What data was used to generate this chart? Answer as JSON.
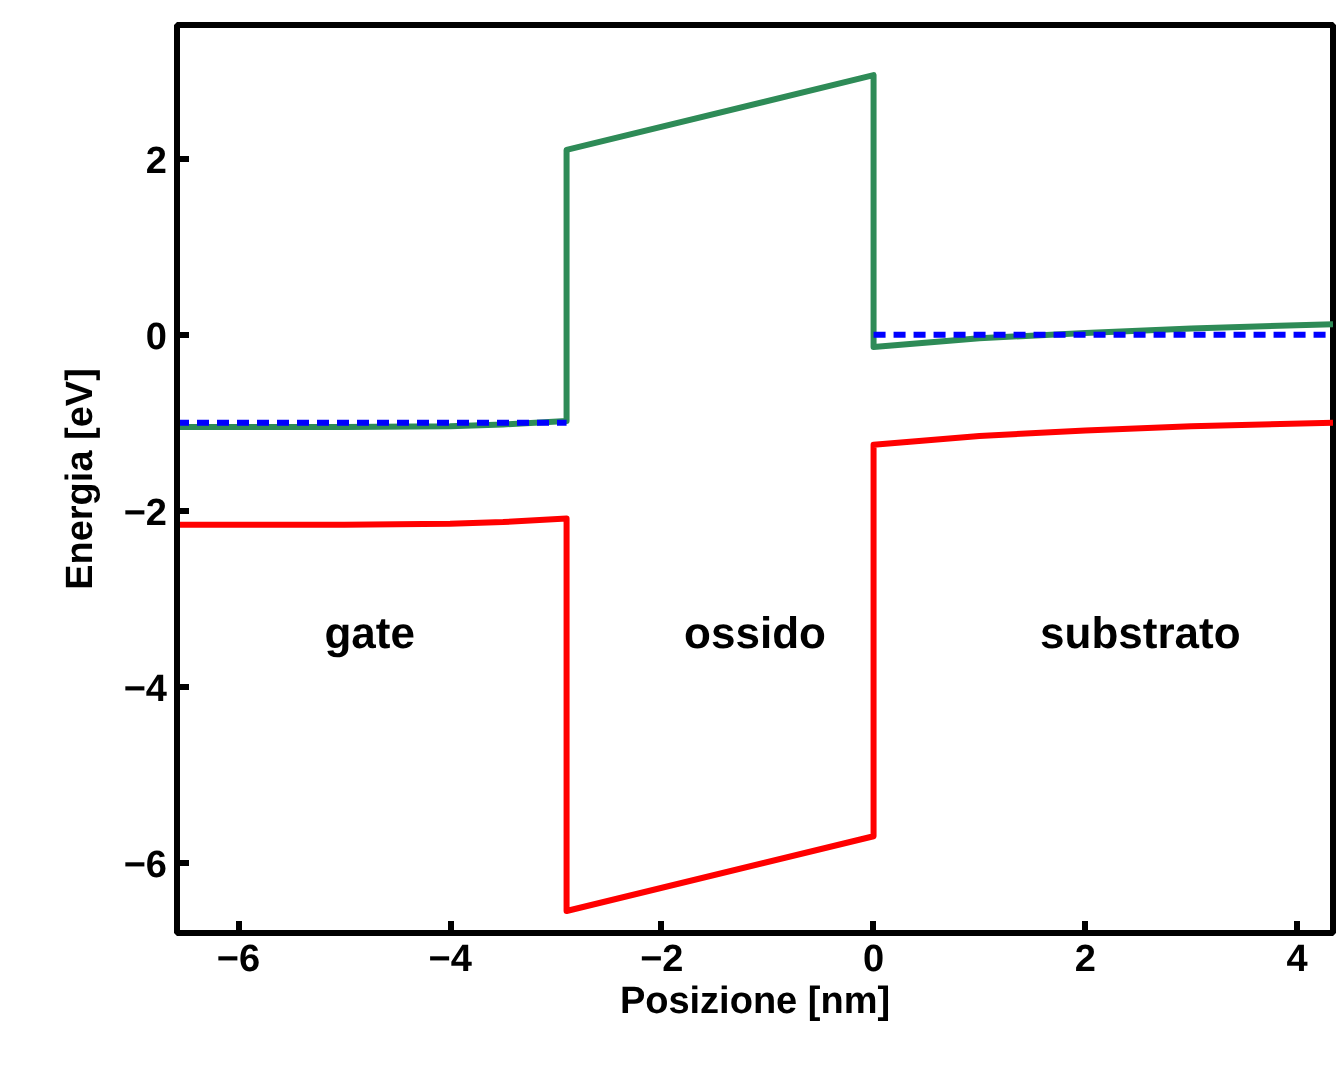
{
  "chart_data": {
    "type": "line",
    "xlabel": "Posizione [nm]",
    "ylabel": "Energia [eV]",
    "xlim": [
      -6.58,
      4.34
    ],
    "ylim": [
      -6.8,
      3.52
    ],
    "xticks": [
      {
        "value": -6,
        "label": "−6"
      },
      {
        "value": -4,
        "label": "−4"
      },
      {
        "value": -2,
        "label": "−2"
      },
      0,
      2,
      4
    ],
    "yticks": [
      {
        "value": -6,
        "label": "−6"
      },
      {
        "value": -4,
        "label": "−4"
      },
      {
        "value": -2,
        "label": "−2"
      },
      0,
      2
    ],
    "grid": false,
    "series": [
      {
        "color": "#2e8b57",
        "x": [
          -6.58,
          -5,
          -4,
          -3.5,
          -2.9,
          -2.9,
          0,
          0,
          1,
          2,
          3,
          4.34
        ],
        "values": [
          -1.05,
          -1.05,
          -1.04,
          -1.02,
          -0.98,
          2.1,
          2.95,
          -0.14,
          -0.04,
          0.02,
          0.07,
          0.12
        ],
        "line_style": "solid"
      },
      {
        "color": "#ff0000",
        "x": [
          -6.58,
          -5,
          -4,
          -3.5,
          -2.9,
          -2.9,
          0,
          0,
          1,
          2,
          3,
          4.34
        ],
        "values": [
          -2.16,
          -2.16,
          -2.15,
          -2.13,
          -2.09,
          -6.55,
          -5.7,
          -1.25,
          -1.15,
          -1.09,
          -1.04,
          -1.0
        ],
        "line_style": "solid"
      },
      {
        "color": "#0000ff",
        "x": [
          -6.58,
          -2.9,
          -1.5,
          0,
          4.34
        ],
        "values": [
          -1.0,
          -1.0,
          null,
          0.0,
          0.0
        ],
        "line_style": "dashed"
      }
    ],
    "annotations": [
      "gate",
      "ossido",
      "substrato"
    ]
  }
}
